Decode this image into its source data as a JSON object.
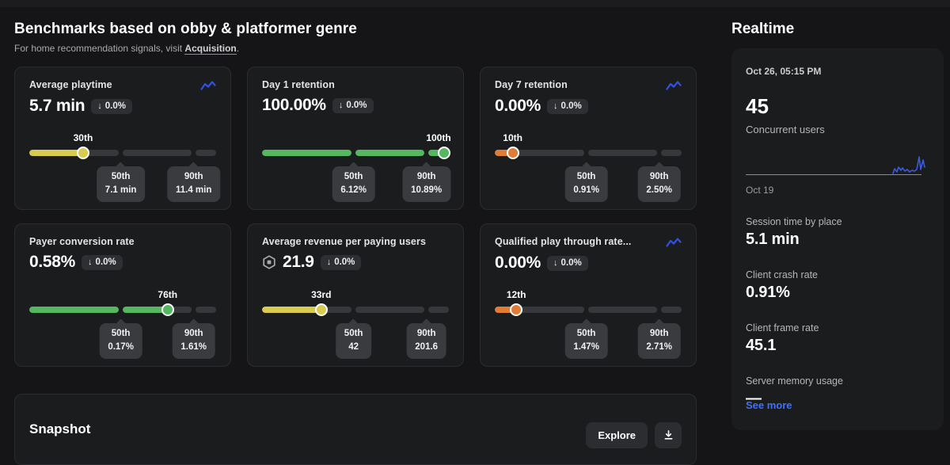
{
  "page": {
    "title": "Benchmarks based on obby & platformer genre",
    "subtitle_prefix": "For home recommendation signals, visit ",
    "subtitle_link": "Acquisition",
    "subtitle_suffix": "."
  },
  "colors": {
    "yellow": "#d9cb4f",
    "green": "#55b75f",
    "orange": "#e07c35",
    "accent_blue": "#2f52e3",
    "link_blue": "#4271f5"
  },
  "cards": [
    {
      "title": "Average playtime",
      "value": "5.7 min",
      "delta_arrow": "↓",
      "delta": "0.0%",
      "has_trend_icon": true,
      "has_robux_icon": false,
      "color": "yellow",
      "percentile": 30,
      "percentile_label": "30th",
      "p50_label": "50th",
      "p50_value": "7.1 min",
      "p90_label": "90th",
      "p90_value": "11.4 min"
    },
    {
      "title": "Day 1 retention",
      "value": "100.00%",
      "delta_arrow": "↓",
      "delta": "0.0%",
      "has_trend_icon": false,
      "has_robux_icon": false,
      "color": "green",
      "percentile": 100,
      "percentile_label": "100th",
      "p50_label": "50th",
      "p50_value": "6.12%",
      "p90_label": "90th",
      "p90_value": "10.89%"
    },
    {
      "title": "Day 7 retention",
      "value": "0.00%",
      "delta_arrow": "↓",
      "delta": "0.0%",
      "has_trend_icon": true,
      "has_robux_icon": false,
      "color": "orange",
      "percentile": 10,
      "percentile_label": "10th",
      "p50_label": "50th",
      "p50_value": "0.91%",
      "p90_label": "90th",
      "p90_value": "2.50%"
    },
    {
      "title": "Payer conversion rate",
      "value": "0.58%",
      "delta_arrow": "↓",
      "delta": "0.0%",
      "has_trend_icon": false,
      "has_robux_icon": false,
      "color": "green",
      "percentile": 76,
      "percentile_label": "76th",
      "p50_label": "50th",
      "p50_value": "0.17%",
      "p90_label": "90th",
      "p90_value": "1.61%"
    },
    {
      "title": "Average revenue per paying users",
      "value": "21.9",
      "delta_arrow": "↓",
      "delta": "0.0%",
      "has_trend_icon": false,
      "has_robux_icon": true,
      "color": "yellow",
      "percentile": 33,
      "percentile_label": "33rd",
      "p50_label": "50th",
      "p50_value": "42",
      "p90_label": "90th",
      "p90_value": "201.6"
    },
    {
      "title": "Qualified play through rate...",
      "value": "0.00%",
      "delta_arrow": "↓",
      "delta": "0.0%",
      "has_trend_icon": true,
      "has_robux_icon": false,
      "color": "orange",
      "percentile": 12,
      "percentile_label": "12th",
      "p50_label": "50th",
      "p50_value": "1.47%",
      "p90_label": "90th",
      "p90_value": "2.71%"
    }
  ],
  "realtime": {
    "title": "Realtime",
    "timestamp": "Oct 26, 05:15 PM",
    "concurrent_value": "45",
    "concurrent_label": "Concurrent users",
    "chart_start_date": "Oct 19",
    "stats": [
      {
        "label": "Session time by place",
        "value": "5.1 min"
      },
      {
        "label": "Client crash rate",
        "value": "0.91%"
      },
      {
        "label": "Client frame rate",
        "value": "45.1"
      },
      {
        "label": "Server memory usage",
        "value": "—"
      }
    ],
    "see_more": "See more"
  },
  "snapshot": {
    "title": "Snapshot",
    "explore_label": "Explore"
  }
}
